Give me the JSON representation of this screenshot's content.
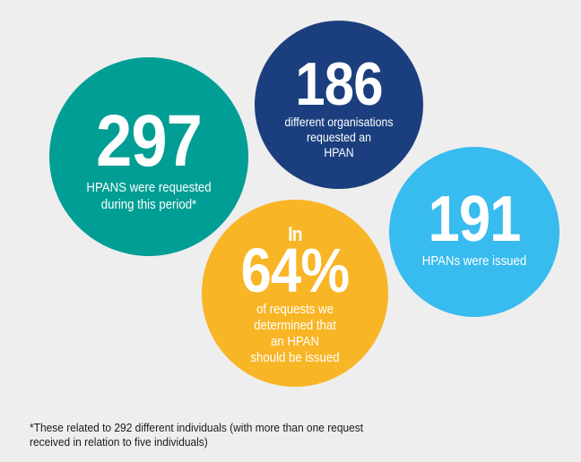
{
  "colors": {
    "background": "#eeeeee",
    "teal": "#009e94",
    "navy": "#1b3f7e",
    "light_blue": "#38bbee",
    "yellow": "#f8b526"
  },
  "stats": {
    "requested": {
      "number": "297",
      "lines": [
        "HPANS were requested",
        "during this period*"
      ]
    },
    "organisations": {
      "number": "186",
      "lines": [
        "different organisations",
        "requested an",
        "HPAN"
      ]
    },
    "issued": {
      "number": "191",
      "lines": [
        "HPANs were issued"
      ]
    },
    "determined": {
      "prefix": "In",
      "number": "64%",
      "lines": [
        "of requests we",
        "determined that",
        "an HPAN",
        "should be issued"
      ]
    }
  },
  "footnote": {
    "lines": [
      "*These related to 292 different individuals (with more than one request",
      "received in relation to five individuals)"
    ]
  }
}
